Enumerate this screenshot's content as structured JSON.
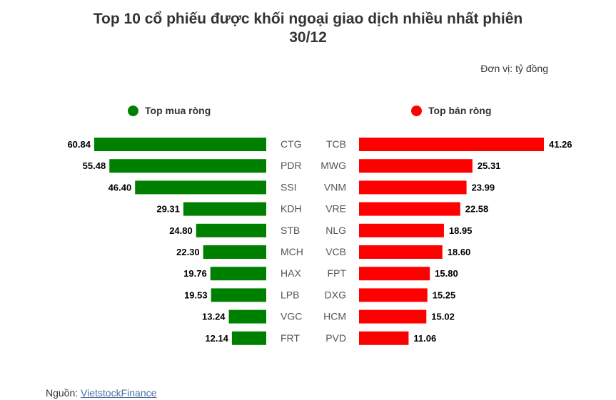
{
  "header": {
    "title_line1": "Top 10 cổ phiếu được khối ngoại giao dịch nhiều nhất phiên",
    "title_line2": "30/12",
    "unit": "Đơn vị: tỷ đồng"
  },
  "legend": {
    "buy_label": "Top mua ròng",
    "sell_label": "Top bán ròng"
  },
  "colors": {
    "buy": "#008000",
    "sell": "#ff0000"
  },
  "chart_data": {
    "type": "bar",
    "title": "Top 10 cổ phiếu được khối ngoại giao dịch nhiều nhất phiên 30/12",
    "unit": "tỷ đồng",
    "series": [
      {
        "name": "Top mua ròng",
        "categories": [
          "CTG",
          "PDR",
          "SSI",
          "KDH",
          "STB",
          "MCH",
          "HAX",
          "LPB",
          "VGC",
          "FRT"
        ],
        "labels": [
          "60.84",
          "55.48",
          "46.40",
          "29.31",
          "24.80",
          "22.30",
          "19.76",
          "19.53",
          "13.24",
          "12.14"
        ],
        "values": [
          60.84,
          55.48,
          46.4,
          29.31,
          24.8,
          22.3,
          19.76,
          19.53,
          13.24,
          12.14
        ]
      },
      {
        "name": "Top bán ròng",
        "categories": [
          "TCB",
          "MWG",
          "VNM",
          "VRE",
          "NLG",
          "VCB",
          "FPT",
          "DXG",
          "HCM",
          "PVD"
        ],
        "labels": [
          "41.26",
          "25.31",
          "23.99",
          "22.58",
          "18.95",
          "18.60",
          "15.80",
          "15.25",
          "15.02",
          "11.06"
        ],
        "values": [
          41.26,
          25.31,
          23.99,
          22.58,
          18.95,
          18.6,
          15.8,
          15.25,
          15.02,
          11.06
        ]
      }
    ]
  },
  "footer": {
    "source_prefix": "Nguồn: ",
    "source_link": "VietstockFinance"
  }
}
